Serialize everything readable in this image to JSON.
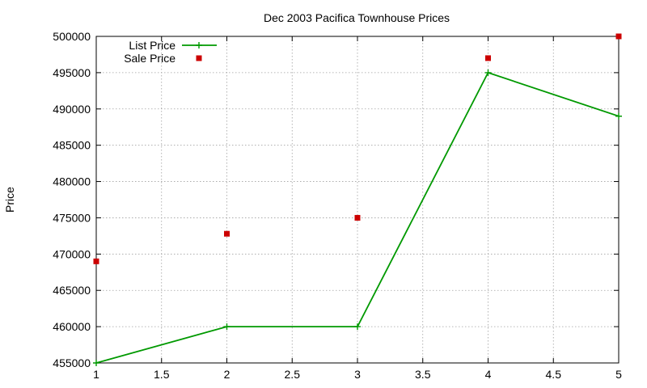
{
  "chart_data": {
    "type": "line",
    "title": "Dec 2003 Pacifica Townhouse Prices",
    "xlabel": "",
    "ylabel": "Price",
    "xlim": [
      1,
      5
    ],
    "ylim": [
      455000,
      500000
    ],
    "x_ticks": [
      "1",
      "1.5",
      "2",
      "2.5",
      "3",
      "3.5",
      "4",
      "4.5",
      "5"
    ],
    "y_ticks": [
      "455000",
      "460000",
      "465000",
      "470000",
      "475000",
      "480000",
      "485000",
      "490000",
      "495000",
      "500000"
    ],
    "grid": true,
    "legend_position": "top-left",
    "series": [
      {
        "name": "List Price",
        "style": "linespoints",
        "color": "#009900",
        "x": [
          1,
          2,
          3,
          4,
          5
        ],
        "y": [
          455000,
          460000,
          460000,
          495000,
          489000
        ]
      },
      {
        "name": "Sale Price",
        "style": "points",
        "color": "#cc0000",
        "x": [
          1,
          2,
          3,
          4,
          5
        ],
        "y": [
          469000,
          472800,
          475000,
          497000,
          500000
        ]
      }
    ]
  }
}
